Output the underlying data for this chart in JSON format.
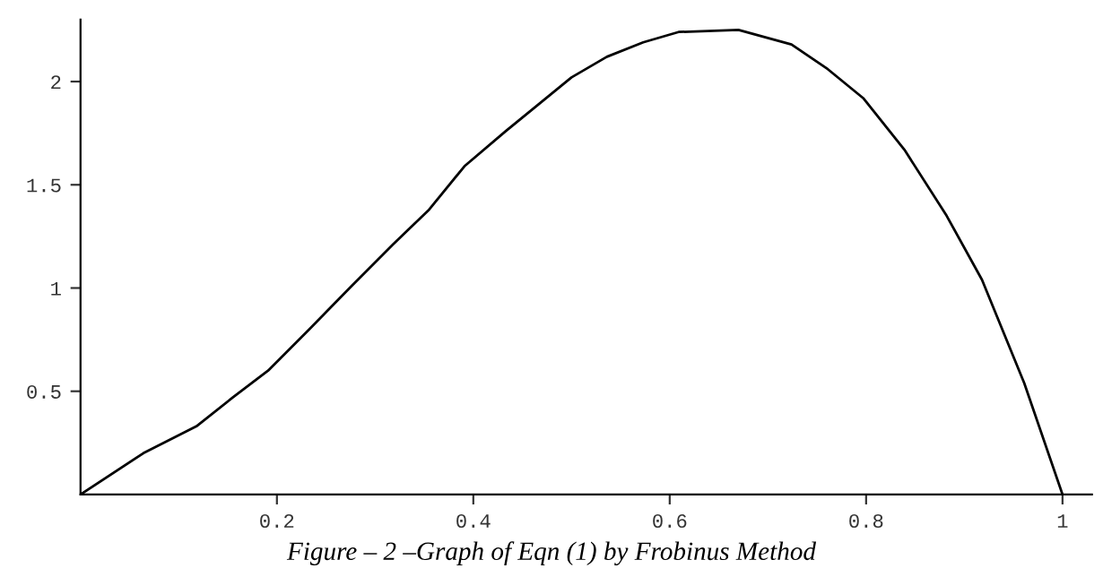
{
  "chart_data": {
    "type": "line",
    "x": [
      0,
      0.064,
      0.118,
      0.155,
      0.191,
      0.233,
      0.276,
      0.318,
      0.355,
      0.391,
      0.433,
      0.464,
      0.5,
      0.536,
      0.573,
      0.609,
      0.67,
      0.724,
      0.761,
      0.797,
      0.839,
      0.882,
      0.918,
      0.961,
      1.0
    ],
    "series": [
      {
        "color": "#000000",
        "values": [
          0,
          0.2,
          0.33,
          0.47,
          0.6,
          0.8,
          1.01,
          1.21,
          1.38,
          1.59,
          1.76,
          1.88,
          2.02,
          2.12,
          2.19,
          2.24,
          2.25,
          2.18,
          2.06,
          1.92,
          1.67,
          1.35,
          1.04,
          0.54,
          0
        ]
      }
    ],
    "xlim": [
      0,
      1.03
    ],
    "ylim": [
      0,
      2.3
    ],
    "xticks": [
      {
        "value": 0.2,
        "label": "0.2"
      },
      {
        "value": 0.4,
        "label": "0.4"
      },
      {
        "value": 0.6,
        "label": "0.6"
      },
      {
        "value": 0.8,
        "label": "0.8"
      },
      {
        "value": 1,
        "label": "1"
      }
    ],
    "yticks": [
      {
        "value": 0.5,
        "label": "0.5"
      },
      {
        "value": 1,
        "label": "1"
      },
      {
        "value": 1.5,
        "label": "1.5"
      },
      {
        "value": 2,
        "label": "2"
      }
    ],
    "grid": false,
    "legend": false,
    "marker": "none",
    "line_style": "solid",
    "annotations": [
      "Figure – 2 –Graph of Eqn (1) by Frobinus Method"
    ]
  }
}
